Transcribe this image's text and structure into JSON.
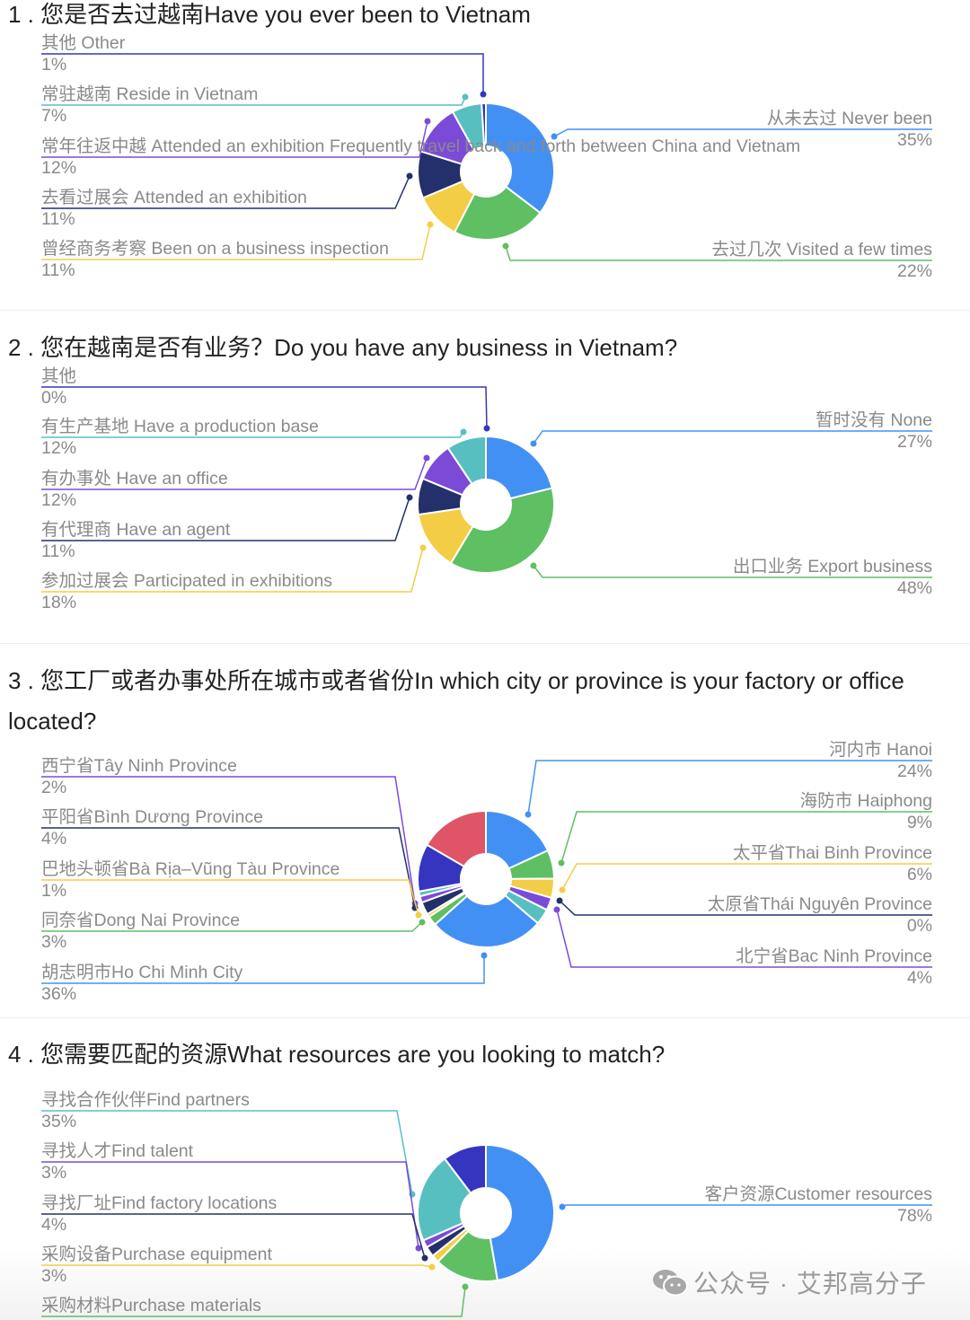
{
  "charts": [
    {
      "title": "1 . 您是否去过越南Have you ever been to Vietnam",
      "type": "pie",
      "left_labels": [
        {
          "name": "其他 Other",
          "pct": "1%",
          "color": "#3535c0"
        },
        {
          "name": "常驻越南 Reside in Vietnam",
          "pct": "7%",
          "color": "#58bfc1"
        },
        {
          "name": "常年往返中越 Attended an exhibition Frequently travel back and forth between China and Vietnam",
          "pct": "12%",
          "color": "#7b4bd8"
        },
        {
          "name": "去看过展会 Attended an exhibition",
          "pct": "11%",
          "color": "#23306b"
        },
        {
          "name": "曾经商务考察 Been on a business inspection",
          "pct": "11%",
          "color": "#f4cd46"
        }
      ],
      "right_labels": [
        {
          "name": "从未去过 Never been",
          "pct": "35%",
          "color": "#4390f5"
        },
        {
          "name": "去过几次 Visited a few times",
          "pct": "22%",
          "color": "#5fbf63"
        }
      ],
      "slices": [
        {
          "label": "从未去过 Never been",
          "value": 35,
          "color": "#4390f5"
        },
        {
          "label": "去过几次 Visited a few times",
          "value": 22,
          "color": "#5fbf63"
        },
        {
          "label": "曾经商务考察 Been on a business inspection",
          "value": 11,
          "color": "#f4cd46"
        },
        {
          "label": "去看过展会 Attended an exhibition",
          "value": 11,
          "color": "#23306b"
        },
        {
          "label": "常年往返中越",
          "value": 12,
          "color": "#7b4bd8"
        },
        {
          "label": "常驻越南 Reside in Vietnam",
          "value": 7,
          "color": "#58bfc1"
        },
        {
          "label": "其他 Other",
          "value": 1,
          "color": "#3535c0"
        }
      ]
    },
    {
      "title": "2 . 您在越南是否有业务？Do you have any business in Vietnam?",
      "type": "pie",
      "left_labels": [
        {
          "name": "其他",
          "pct": "0%",
          "color": "#3535c0"
        },
        {
          "name": "有生产基地 Have a production base",
          "pct": "12%",
          "color": "#58bfc1"
        },
        {
          "name": "有办事处 Have an office",
          "pct": "12%",
          "color": "#7b4bd8"
        },
        {
          "name": "有代理商 Have an agent",
          "pct": "11%",
          "color": "#23306b"
        },
        {
          "name": "参加过展会 Participated in exhibitions",
          "pct": "18%",
          "color": "#f4cd46"
        }
      ],
      "right_labels": [
        {
          "name": "暂时没有 None",
          "pct": "27%",
          "color": "#4390f5"
        },
        {
          "name": "出口业务 Export business",
          "pct": "48%",
          "color": "#5fbf63"
        }
      ],
      "slices": [
        {
          "label": "暂时没有 None",
          "value": 27,
          "color": "#4390f5"
        },
        {
          "label": "出口业务 Export business",
          "value": 48,
          "color": "#5fbf63"
        },
        {
          "label": "参加过展会",
          "value": 18,
          "color": "#f4cd46"
        },
        {
          "label": "有代理商",
          "value": 11,
          "color": "#23306b"
        },
        {
          "label": "有办事处",
          "value": 12,
          "color": "#7b4bd8"
        },
        {
          "label": "有生产基地",
          "value": 12,
          "color": "#58bfc1"
        },
        {
          "label": "其他",
          "value": 0,
          "color": "#3535c0"
        }
      ]
    },
    {
      "title": "3 . 您工厂或者办事处所在城市或者省份In which city or province is your factory or office located?",
      "type": "pie",
      "left_labels": [
        {
          "name": "西宁省Tây Ninh Province",
          "pct": "2%",
          "color": "#7b4bd8"
        },
        {
          "name": "平阳省Bình Dương Province",
          "pct": "4%",
          "color": "#23306b"
        },
        {
          "name": "巴地头顿省Bà Rịa–Vũng Tàu Province",
          "pct": "1%",
          "color": "#f4cd46"
        },
        {
          "name": "同奈省Dong Nai Province",
          "pct": "3%",
          "color": "#5fbf63"
        },
        {
          "name": "胡志明市Ho Chi Minh City",
          "pct": "36%",
          "color": "#4390f5"
        }
      ],
      "right_labels": [
        {
          "name": "河内市 Hanoi",
          "pct": "24%",
          "color": "#4390f5"
        },
        {
          "name": "海防市 Haiphong",
          "pct": "9%",
          "color": "#5fbf63"
        },
        {
          "name": "太平省Thai Binh Province",
          "pct": "6%",
          "color": "#f4cd46"
        },
        {
          "name": "太原省Thái Nguyên Province",
          "pct": "0%",
          "color": "#23306b"
        },
        {
          "name": "北宁省Bac Ninh Province",
          "pct": "4%",
          "color": "#7b4bd8"
        }
      ],
      "slices": [
        {
          "label": "河内市 Hanoi",
          "value": 24,
          "color": "#4390f5"
        },
        {
          "label": "海防市 Haiphong",
          "value": 9,
          "color": "#5fbf63"
        },
        {
          "label": "太平省Thai Binh Province",
          "value": 6,
          "color": "#f4cd46"
        },
        {
          "label": "太原省Thái Nguyên Province",
          "value": 0,
          "color": "#23306b"
        },
        {
          "label": "北宁省Bac Ninh Province",
          "value": 4,
          "color": "#7b4bd8"
        },
        {
          "value": 5,
          "color": "#58bfc1"
        },
        {
          "label": "胡志明市Ho Chi Minh City",
          "value": 36,
          "color": "#4390f5"
        },
        {
          "label": "同奈省Dong Nai Province",
          "value": 3,
          "color": "#5fbf63"
        },
        {
          "label": "巴地头顿省Bà Rịa–Vũng Tàu Province",
          "value": 1,
          "color": "#f4cd46"
        },
        {
          "label": "平阳省Bình Dương Province",
          "value": 4,
          "color": "#23306b"
        },
        {
          "label": "西宁省Tây Ninh Province",
          "value": 2,
          "color": "#7b4bd8"
        },
        {
          "value": 1.5,
          "color": "#58bfc1"
        },
        {
          "value": 15,
          "color": "#3535c0"
        },
        {
          "value": 22,
          "color": "#e05468"
        }
      ]
    },
    {
      "title": "4 . 您需要匹配的资源What resources are you looking to match?",
      "type": "pie",
      "left_labels": [
        {
          "name": "寻找合作伙伴Find partners",
          "pct": "35%",
          "color": "#58bfc1"
        },
        {
          "name": "寻找人才Find talent",
          "pct": "3%",
          "color": "#7b4bd8"
        },
        {
          "name": "寻找厂址Find factory locations",
          "pct": "4%",
          "color": "#23306b"
        },
        {
          "name": "采购设备Purchase equipment",
          "pct": "3%",
          "color": "#f4cd46"
        },
        {
          "name": "采购材料Purchase materials",
          "pct": "",
          "color": "#5fbf63"
        }
      ],
      "right_labels": [
        {
          "name": "客户资源Customer resources",
          "pct": "78%",
          "color": "#4390f5"
        }
      ],
      "slices": [
        {
          "label": "客户资源Customer resources",
          "value": 78,
          "color": "#4390f5"
        },
        {
          "label": "采购材料Purchase materials",
          "value": 25,
          "color": "#5fbf63"
        },
        {
          "label": "采购设备Purchase equipment",
          "value": 3,
          "color": "#f4cd46"
        },
        {
          "label": "寻找厂址Find factory locations",
          "value": 4,
          "color": "#23306b"
        },
        {
          "label": "寻找人才Find talent",
          "value": 3,
          "color": "#7b4bd8"
        },
        {
          "label": "寻找合作伙伴Find partners",
          "value": 35,
          "color": "#58bfc1"
        },
        {
          "value": 17,
          "color": "#3535c0"
        }
      ]
    }
  ],
  "chart_data": [
    {
      "type": "pie",
      "title": "1 . 您是否去过越南Have you ever been to Vietnam",
      "categories": [
        "从未去过 Never been",
        "去过几次 Visited a few times",
        "曾经商务考察 Been on a business inspection",
        "去看过展会 Attended an exhibition",
        "常年往返中越",
        "常驻越南 Reside in Vietnam",
        "其他 Other"
      ],
      "values": [
        35,
        22,
        11,
        11,
        12,
        7,
        1
      ]
    },
    {
      "type": "pie",
      "title": "2 . 您在越南是否有业务？Do you have any business in Vietnam?",
      "categories": [
        "暂时没有 None",
        "出口业务 Export business",
        "参加过展会 Participated in exhibitions",
        "有代理商 Have an agent",
        "有办事处 Have an office",
        "有生产基地 Have a production base",
        "其他"
      ],
      "values": [
        27,
        48,
        18,
        11,
        12,
        12,
        0
      ]
    },
    {
      "type": "pie",
      "title": "3 . 您工厂或者办事处所在城市或者省份In which city or province is your factory or office located?",
      "categories": [
        "河内市 Hanoi",
        "海防市 Haiphong",
        "太平省Thai Binh Province",
        "太原省Thái Nguyên Province",
        "北宁省Bac Ninh Province",
        "胡志明市Ho Chi Minh City",
        "同奈省Dong Nai Province",
        "巴地头顿省Bà Rịa–Vũng Tàu Province",
        "平阳省Bình Dương Province",
        "西宁省Tây Ninh Province"
      ],
      "values": [
        24,
        9,
        6,
        0,
        4,
        36,
        3,
        1,
        4,
        2
      ]
    },
    {
      "type": "pie",
      "title": "4 . 您需要匹配的资源What resources are you looking to match?",
      "categories": [
        "客户资源Customer resources",
        "寻找合作伙伴Find partners",
        "寻找人才Find talent",
        "寻找厂址Find factory locations",
        "采购设备Purchase equipment"
      ],
      "values": [
        78,
        35,
        3,
        4,
        3
      ]
    }
  ],
  "watermark": {
    "icon": "wechat-icon",
    "text": "公众号 · 艾邦高分子"
  }
}
